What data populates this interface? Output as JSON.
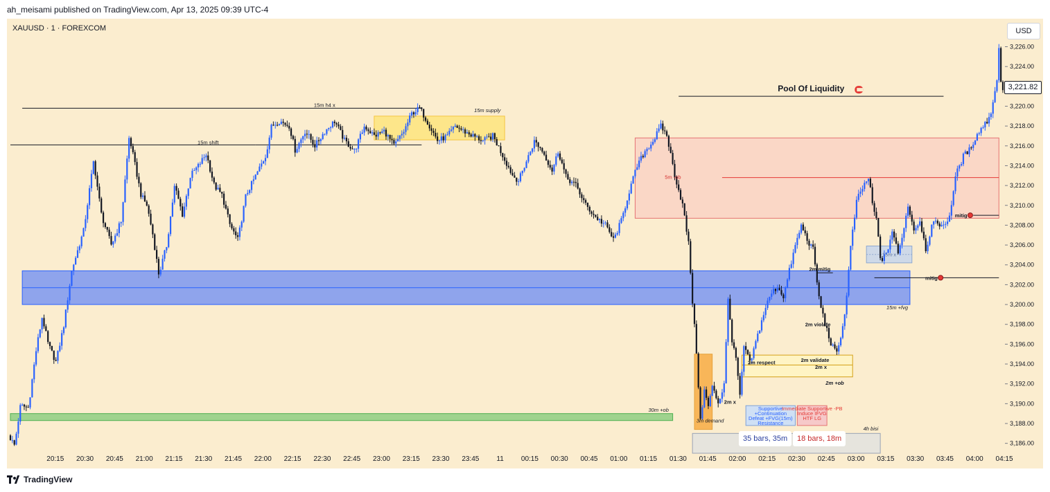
{
  "header": {
    "publisher_line": "ah_meisami published on TradingView.com, Apr 13, 2025 09:39 UTC-4"
  },
  "symbol": {
    "label": "XAUUSD · 1 · FOREXCOM"
  },
  "footer": {
    "brand": "TradingView"
  },
  "currency": "USD",
  "last_price": "3,221.82",
  "colors": {
    "background": "#fbedcf",
    "bull": "#2962ff",
    "bear": "#131722",
    "blue_zone": "#8fa4ec",
    "supply_zone": "#fde68a",
    "ob_zone": "#f9d2c4",
    "demand_zone": "#f8b659",
    "green_zone": "#9fd38e"
  },
  "chart_data": {
    "type": "candlestick",
    "title": "XAUUSD · 1 · FOREXCOM",
    "ylabel": "USD",
    "ylim": [
      3185,
      3227.5
    ],
    "y_ticks": [
      {
        "v": 3226,
        "label": "3,226.00"
      },
      {
        "v": 3224,
        "label": "3,224.00"
      },
      {
        "v": 3220,
        "label": "3,220.00"
      },
      {
        "v": 3218,
        "label": "3,218.00"
      },
      {
        "v": 3216,
        "label": "3,216.00"
      },
      {
        "v": 3214,
        "label": "3,214.00"
      },
      {
        "v": 3212,
        "label": "3,212.00"
      },
      {
        "v": 3210,
        "label": "3,210.00"
      },
      {
        "v": 3208,
        "label": "3,208.00"
      },
      {
        "v": 3206,
        "label": "3,206.00"
      },
      {
        "v": 3204,
        "label": "3,204.00"
      },
      {
        "v": 3202,
        "label": "3,202.00"
      },
      {
        "v": 3200,
        "label": "3,200.00"
      },
      {
        "v": 3198,
        "label": "3,198.00"
      },
      {
        "v": 3196,
        "label": "3,196.00"
      },
      {
        "v": 3194,
        "label": "3,194.00"
      },
      {
        "v": 3192,
        "label": "3,192.00"
      },
      {
        "v": 3190,
        "label": "3,190.00"
      },
      {
        "v": 3188,
        "label": "3,188.00"
      },
      {
        "v": 3186,
        "label": "3,186.00"
      }
    ],
    "x_ticks": [
      {
        "t": 15,
        "label": "20:15"
      },
      {
        "t": 30,
        "label": "20:30"
      },
      {
        "t": 45,
        "label": "20:45"
      },
      {
        "t": 60,
        "label": "21:00"
      },
      {
        "t": 75,
        "label": "21:15"
      },
      {
        "t": 90,
        "label": "21:30"
      },
      {
        "t": 105,
        "label": "21:45"
      },
      {
        "t": 120,
        "label": "22:00"
      },
      {
        "t": 135,
        "label": "22:15"
      },
      {
        "t": 150,
        "label": "22:30"
      },
      {
        "t": 165,
        "label": "22:45"
      },
      {
        "t": 180,
        "label": "23:00"
      },
      {
        "t": 195,
        "label": "23:15"
      },
      {
        "t": 210,
        "label": "23:30"
      },
      {
        "t": 225,
        "label": "23:45"
      },
      {
        "t": 240,
        "label": "11"
      },
      {
        "t": 255,
        "label": "00:15"
      },
      {
        "t": 270,
        "label": "00:30"
      },
      {
        "t": 285,
        "label": "00:45"
      },
      {
        "t": 300,
        "label": "01:00"
      },
      {
        "t": 315,
        "label": "01:15"
      },
      {
        "t": 330,
        "label": "01:30"
      },
      {
        "t": 345,
        "label": "01:45"
      },
      {
        "t": 360,
        "label": "02:00"
      },
      {
        "t": 375,
        "label": "02:15"
      },
      {
        "t": 390,
        "label": "02:30"
      },
      {
        "t": 405,
        "label": "02:45"
      },
      {
        "t": 420,
        "label": "03:00"
      },
      {
        "t": 435,
        "label": "03:15"
      },
      {
        "t": 450,
        "label": "03:30"
      },
      {
        "t": 465,
        "label": "03:45"
      },
      {
        "t": 480,
        "label": "04:00"
      },
      {
        "t": 495,
        "label": "04:15"
      }
    ],
    "x_unit": "minutes since 20:00",
    "price_path": [
      [
        0,
        3186.8
      ],
      [
        3,
        3185.8
      ],
      [
        6,
        3189.8
      ],
      [
        10,
        3189.6
      ],
      [
        14,
        3195.5
      ],
      [
        17,
        3198.8
      ],
      [
        20,
        3196
      ],
      [
        24,
        3194.2
      ],
      [
        28,
        3198
      ],
      [
        32,
        3203.5
      ],
      [
        38,
        3207.5
      ],
      [
        43,
        3214.5
      ],
      [
        47,
        3209
      ],
      [
        52,
        3206
      ],
      [
        57,
        3208.5
      ],
      [
        61,
        3217
      ],
      [
        64,
        3214
      ],
      [
        67,
        3211
      ],
      [
        70,
        3210
      ],
      [
        73,
        3207
      ],
      [
        76,
        3203
      ],
      [
        80,
        3206
      ],
      [
        84,
        3212
      ],
      [
        88,
        3209
      ],
      [
        92,
        3213
      ],
      [
        96,
        3214
      ],
      [
        100,
        3215.2
      ],
      [
        104,
        3212
      ],
      [
        108,
        3211
      ],
      [
        112,
        3208
      ],
      [
        116,
        3206.5
      ],
      [
        120,
        3211
      ],
      [
        125,
        3213
      ],
      [
        130,
        3215
      ],
      [
        133,
        3218
      ],
      [
        137,
        3218.5
      ],
      [
        142,
        3218
      ],
      [
        145,
        3215.5
      ],
      [
        150,
        3217.5
      ],
      [
        155,
        3216
      ],
      [
        160,
        3217.5
      ],
      [
        165,
        3218.5
      ],
      [
        170,
        3216.5
      ],
      [
        175,
        3215.5
      ],
      [
        180,
        3218
      ],
      [
        185,
        3217
      ],
      [
        190,
        3217.5
      ],
      [
        195,
        3216
      ],
      [
        200,
        3217.5
      ],
      [
        204,
        3219.3
      ],
      [
        208,
        3219.8
      ],
      [
        213,
        3218
      ],
      [
        217,
        3216.5
      ],
      [
        222,
        3217
      ],
      [
        226,
        3218
      ],
      [
        230,
        3217.5
      ],
      [
        235,
        3217
      ],
      [
        240,
        3216.5
      ],
      [
        245,
        3217
      ],
      [
        250,
        3215
      ],
      [
        255,
        3213
      ],
      [
        258,
        3212.5
      ],
      [
        262,
        3214.5
      ],
      [
        266,
        3216.5
      ],
      [
        270,
        3215.5
      ],
      [
        275,
        3213.5
      ],
      [
        278,
        3215.5
      ],
      [
        282,
        3212.8
      ],
      [
        287,
        3212
      ],
      [
        292,
        3210
      ],
      [
        297,
        3208.8
      ],
      [
        302,
        3208
      ],
      [
        306,
        3206.5
      ],
      [
        310,
        3208.5
      ],
      [
        314,
        3211.5
      ],
      [
        318,
        3214
      ],
      [
        322,
        3215.5
      ],
      [
        326,
        3216.5
      ],
      [
        330,
        3218
      ],
      [
        333,
        3217
      ],
      [
        337,
        3213
      ],
      [
        341,
        3210
      ],
      [
        344,
        3206
      ],
      [
        346,
        3200
      ],
      [
        348,
        3195
      ],
      [
        350,
        3188
      ],
      [
        352,
        3191.5
      ],
      [
        354,
        3189.5
      ],
      [
        356,
        3192
      ],
      [
        359,
        3190
      ],
      [
        362,
        3192
      ],
      [
        364,
        3201
      ],
      [
        366,
        3196
      ],
      [
        368,
        3194.5
      ],
      [
        370,
        3190.5
      ],
      [
        372,
        3196
      ],
      [
        375,
        3194
      ],
      [
        379,
        3197
      ],
      [
        383,
        3199.8
      ],
      [
        386,
        3201.2
      ],
      [
        389,
        3201.8
      ],
      [
        392,
        3200.8
      ],
      [
        395,
        3203.5
      ],
      [
        398,
        3206
      ],
      [
        401,
        3208
      ],
      [
        404,
        3206.5
      ],
      [
        407,
        3205.5
      ],
      [
        410,
        3200.5
      ],
      [
        413,
        3198
      ],
      [
        416,
        3196
      ],
      [
        419,
        3195
      ],
      [
        423,
        3199
      ],
      [
        426,
        3206
      ],
      [
        429,
        3210.5
      ],
      [
        432,
        3211.8
      ],
      [
        435,
        3212.8
      ],
      [
        437,
        3210
      ],
      [
        439,
        3208.5
      ],
      [
        441,
        3204.5
      ],
      [
        444,
        3205
      ],
      [
        447,
        3207.5
      ],
      [
        450,
        3205
      ],
      [
        453,
        3208
      ],
      [
        455,
        3210
      ],
      [
        458,
        3207.5
      ],
      [
        461,
        3208.5
      ],
      [
        464,
        3205.5
      ],
      [
        467,
        3208
      ],
      [
        470,
        3208.3
      ],
      [
        473,
        3207.8
      ],
      [
        476,
        3209
      ],
      [
        479,
        3213
      ],
      [
        483,
        3215
      ],
      [
        486,
        3215.6
      ],
      [
        489,
        3216.8
      ],
      [
        492,
        3217.8
      ],
      [
        495,
        3218.5
      ],
      [
        497,
        3219.5
      ],
      [
        499,
        3221.5
      ],
      [
        500,
        3223
      ],
      [
        501,
        3226.3
      ],
      [
        502,
        3221.8
      ]
    ],
    "zones": [
      {
        "name": "15m supply",
        "t1": 184,
        "t2": 250,
        "p1": 3216.6,
        "p2": 3219
      },
      {
        "name": "5m -ob",
        "t1": 316,
        "t2": 500,
        "p1": 3208.7,
        "p2": 3216.8
      },
      {
        "name": "15m +fvg",
        "t1": 6,
        "t2": 455,
        "p1": 3200,
        "p2": 3203.4
      },
      {
        "name": "15m x box",
        "t1": 433,
        "t2": 456,
        "p1": 3204.2,
        "p2": 3205.9
      },
      {
        "name": "30m +ob",
        "t1": 0,
        "t2": 335,
        "p1": 3188.3,
        "p2": 3189
      },
      {
        "name": "3m demand",
        "t1": 346,
        "t2": 355,
        "p1": 3187.4,
        "p2": 3195
      },
      {
        "name": "2m +ob",
        "t1": 370,
        "t2": 426,
        "p1": 3192.7,
        "p2": 3194.9
      },
      {
        "name": "4h bisi",
        "t1": 345,
        "t2": 440,
        "p1": 3185,
        "p2": 3187
      }
    ],
    "levels": [
      {
        "name": "15m h4 x",
        "price": 3219.8,
        "t1": 6,
        "t2": 208
      },
      {
        "name": "15m shift",
        "price": 3216.1,
        "t1": 0,
        "t2": 124
      },
      {
        "name": "Pool Of Liquidity",
        "price": 3221,
        "t1": 338,
        "t2": 472
      },
      {
        "name": "5m -ob mid",
        "price": 3212.8,
        "t1": 360,
        "t2": 500
      },
      {
        "name": "mitig right",
        "price": 3202.7,
        "t1": 437,
        "t2": 500
      }
    ],
    "annotations": {
      "supply": "15m supply",
      "h4x": "15m h4 x",
      "shift": "15m shift",
      "minus_ob": "5m -ob",
      "fvg": "15m +fvg",
      "ob30": "30m +ob",
      "demand3m": "3m demand",
      "respect": "2m respect",
      "validate": "2m validate",
      "twomx1": "2m x",
      "twomx2": "2m x",
      "plusob2m": "2m +ob",
      "violate": "2m violate",
      "mitig2m": "2m mitig",
      "mitig1": "mitig",
      "mitig2": "mitig",
      "fifteen_x": "15m x",
      "bisi": "4h bisi",
      "pool": "Pool Of Liquidity",
      "supportive_1": "Supportive",
      "supportive_2": "+Continuation",
      "supportive_3": "Defeat +FVG(15m)",
      "supportive_4": "Resistance",
      "immediate_1": "Immediate Supportive -PB",
      "immediate_2": "Induce IFVG",
      "immediate_3": "HTF LG",
      "bars1": "35 bars, 35m",
      "bars2": "18 bars, 18m"
    }
  }
}
